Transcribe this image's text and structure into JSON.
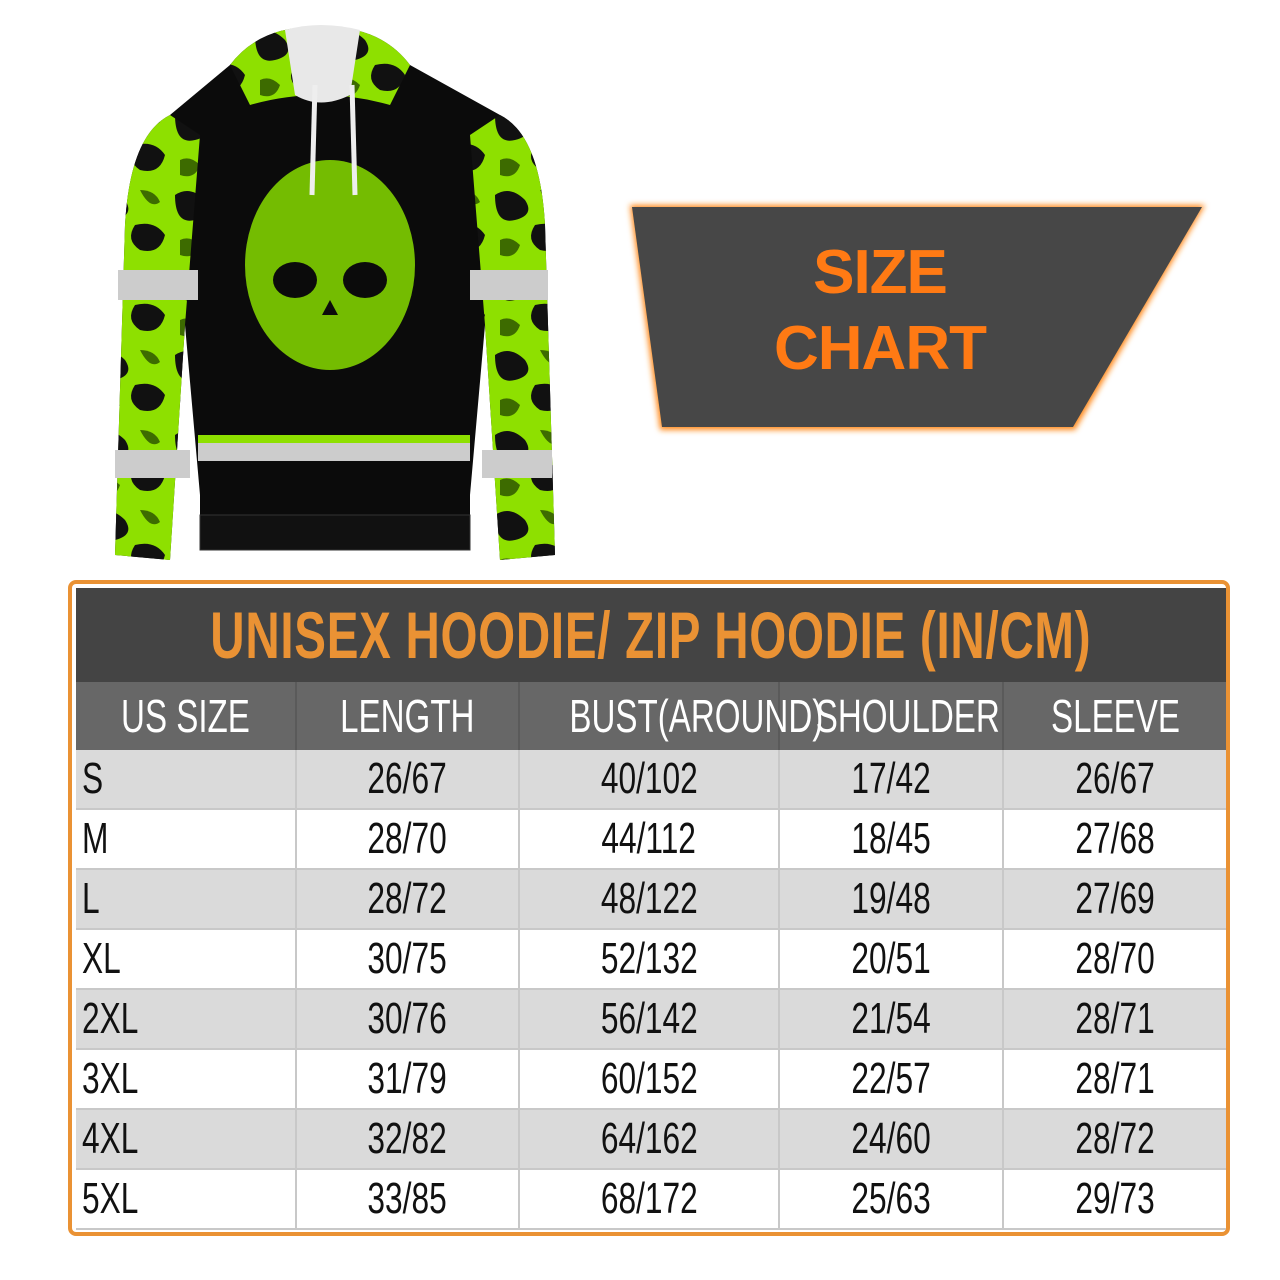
{
  "banner": {
    "line1": "SIZE",
    "line2": "CHART"
  },
  "colors": {
    "accent_orange": "#ea9234",
    "banner_text": "#ff7a14",
    "dark_gray": "#444444",
    "header_gray": "#676767",
    "camo_green": "#8ee000"
  },
  "product_image": {
    "icon": "hoodie-camo-skull-image"
  },
  "table": {
    "title": "UNISEX HOODIE/ ZIP HOODIE (IN/CM)",
    "headers": [
      "US SIZE",
      "LENGTH",
      "BUST(AROUND)",
      "SHOULDER",
      "SLEEVE"
    ],
    "rows": [
      [
        "S",
        "26/67",
        "40/102",
        "17/42",
        "26/67"
      ],
      [
        "M",
        "28/70",
        "44/112",
        "18/45",
        "27/68"
      ],
      [
        "L",
        "28/72",
        "48/122",
        "19/48",
        "27/69"
      ],
      [
        "XL",
        "30/75",
        "52/132",
        "20/51",
        "28/70"
      ],
      [
        "2XL",
        "30/76",
        "56/142",
        "21/54",
        "28/71"
      ],
      [
        "3XL",
        "31/79",
        "60/152",
        "22/57",
        "28/71"
      ],
      [
        "4XL",
        "32/82",
        "64/162",
        "24/60",
        "28/72"
      ],
      [
        "5XL",
        "33/85",
        "68/172",
        "25/63",
        "29/73"
      ]
    ]
  }
}
